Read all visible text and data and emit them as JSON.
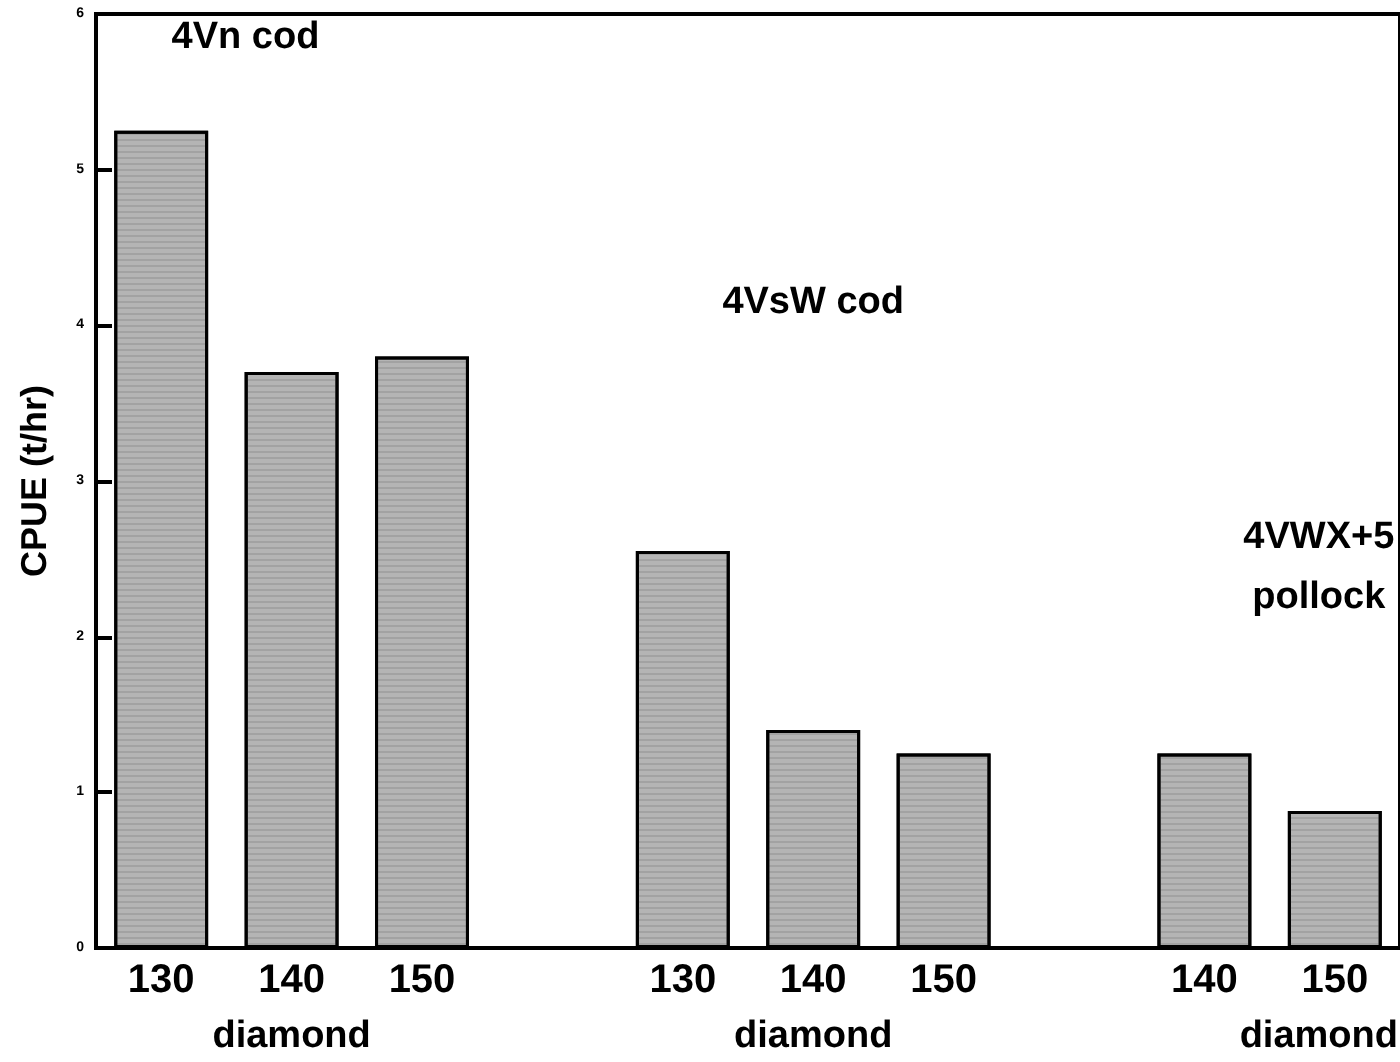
{
  "chart_data": {
    "type": "bar",
    "ylabel": "CPUE (t/hr)",
    "categories": [
      "130",
      "140",
      "150",
      null,
      "130",
      "140",
      "150",
      null,
      "140",
      "150"
    ],
    "values": [
      5.25,
      3.7,
      3.8,
      null,
      2.55,
      1.4,
      1.25,
      null,
      1.25,
      0.88
    ],
    "color": "#b4b4b4",
    "ylim": [
      0,
      6
    ],
    "yticks": [
      0,
      1,
      2,
      3,
      4,
      5,
      6
    ],
    "grid": false,
    "annotations": [
      "4Vn cod",
      "4VsW cod",
      "4VWX+5\npollock",
      "diamond",
      "diamond",
      "diamond"
    ]
  }
}
